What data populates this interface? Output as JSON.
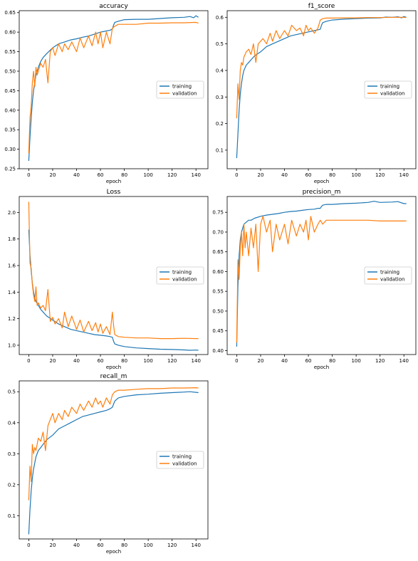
{
  "colors": {
    "training": "#1f77b4",
    "validation": "#ff7f0e",
    "axis": "#000000",
    "background": "#ffffff"
  },
  "chart_data": [
    {
      "type": "line",
      "title": "accuracy",
      "xlabel": "epoch",
      "ylabel": "",
      "xlim": [
        -8,
        150
      ],
      "ylim": [
        0.25,
        0.655
      ],
      "xticks": [
        0,
        20,
        40,
        60,
        80,
        100,
        120,
        140
      ],
      "yticks": [
        0.25,
        0.3,
        0.35,
        0.4,
        0.45,
        0.5,
        0.55,
        0.6,
        0.65
      ],
      "ytick_labels": [
        "0.25",
        "0.30",
        "0.35",
        "0.40",
        "0.45",
        "0.50",
        "0.55",
        "0.60",
        "0.65"
      ],
      "grid": false,
      "legend": "center-right",
      "series": [
        {
          "name": "training",
          "color": "#1f77b4",
          "x": [
            0,
            1,
            2,
            3,
            4,
            5,
            6,
            8,
            10,
            12,
            15,
            20,
            25,
            30,
            35,
            40,
            45,
            50,
            55,
            60,
            65,
            68,
            70,
            71,
            72,
            75,
            80,
            90,
            100,
            110,
            120,
            130,
            135,
            138,
            140,
            142
          ],
          "y": [
            0.27,
            0.33,
            0.38,
            0.42,
            0.45,
            0.47,
            0.49,
            0.51,
            0.525,
            0.535,
            0.545,
            0.56,
            0.57,
            0.575,
            0.58,
            0.583,
            0.587,
            0.59,
            0.595,
            0.6,
            0.603,
            0.605,
            0.608,
            0.618,
            0.625,
            0.628,
            0.632,
            0.633,
            0.633,
            0.635,
            0.637,
            0.638,
            0.64,
            0.637,
            0.642,
            0.638
          ]
        },
        {
          "name": "validation",
          "color": "#ff7f0e",
          "x": [
            0,
            1,
            2,
            3,
            4,
            5,
            6,
            7,
            8,
            10,
            12,
            14,
            16,
            18,
            20,
            22,
            25,
            28,
            30,
            33,
            36,
            40,
            43,
            46,
            50,
            53,
            56,
            58,
            60,
            62,
            65,
            68,
            70,
            72,
            75,
            80,
            90,
            100,
            110,
            120,
            130,
            140,
            142
          ],
          "y": [
            0.29,
            0.38,
            0.41,
            0.47,
            0.5,
            0.46,
            0.51,
            0.49,
            0.5,
            0.52,
            0.51,
            0.53,
            0.47,
            0.55,
            0.56,
            0.54,
            0.57,
            0.55,
            0.57,
            0.555,
            0.575,
            0.55,
            0.585,
            0.56,
            0.59,
            0.565,
            0.6,
            0.57,
            0.6,
            0.56,
            0.6,
            0.57,
            0.61,
            0.615,
            0.62,
            0.62,
            0.62,
            0.623,
            0.623,
            0.624,
            0.624,
            0.625,
            0.623
          ]
        }
      ]
    },
    {
      "type": "line",
      "title": "f1_score",
      "xlabel": "epoch",
      "ylabel": "",
      "xlim": [
        -8,
        150
      ],
      "ylim": [
        0.03,
        0.625
      ],
      "xticks": [
        0,
        20,
        40,
        60,
        80,
        100,
        120,
        140
      ],
      "yticks": [
        0.1,
        0.2,
        0.3,
        0.4,
        0.5,
        0.6
      ],
      "ytick_labels": [
        "0.1",
        "0.2",
        "0.3",
        "0.4",
        "0.5",
        "0.6"
      ],
      "grid": false,
      "legend": "center-right",
      "series": [
        {
          "name": "training",
          "color": "#1f77b4",
          "x": [
            0,
            1,
            2,
            3,
            4,
            5,
            6,
            8,
            10,
            12,
            15,
            20,
            25,
            30,
            35,
            40,
            45,
            50,
            55,
            60,
            65,
            68,
            70,
            71,
            72,
            75,
            80,
            90,
            100,
            110,
            120,
            125,
            130,
            135,
            138,
            140,
            142
          ],
          "y": [
            0.07,
            0.16,
            0.25,
            0.31,
            0.35,
            0.38,
            0.4,
            0.42,
            0.43,
            0.44,
            0.455,
            0.47,
            0.49,
            0.5,
            0.51,
            0.52,
            0.53,
            0.535,
            0.54,
            0.545,
            0.55,
            0.553,
            0.555,
            0.57,
            0.58,
            0.585,
            0.59,
            0.593,
            0.595,
            0.597,
            0.598,
            0.601,
            0.6,
            0.602,
            0.598,
            0.603,
            0.6
          ]
        },
        {
          "name": "validation",
          "color": "#ff7f0e",
          "x": [
            0,
            1,
            2,
            3,
            4,
            5,
            6,
            8,
            10,
            12,
            14,
            16,
            18,
            20,
            22,
            25,
            28,
            30,
            33,
            36,
            40,
            43,
            46,
            50,
            53,
            56,
            58,
            60,
            62,
            65,
            68,
            70,
            72,
            75,
            80,
            90,
            100,
            110,
            120,
            130,
            140,
            142
          ],
          "y": [
            0.22,
            0.35,
            0.29,
            0.4,
            0.43,
            0.42,
            0.45,
            0.47,
            0.48,
            0.46,
            0.5,
            0.43,
            0.5,
            0.51,
            0.52,
            0.5,
            0.54,
            0.51,
            0.55,
            0.52,
            0.55,
            0.53,
            0.57,
            0.55,
            0.56,
            0.53,
            0.57,
            0.55,
            0.56,
            0.54,
            0.56,
            0.59,
            0.595,
            0.597,
            0.597,
            0.598,
            0.598,
            0.599,
            0.599,
            0.6,
            0.6,
            0.599
          ]
        }
      ]
    },
    {
      "type": "line",
      "title": "Loss",
      "xlabel": "epoch",
      "ylabel": "",
      "xlim": [
        -8,
        150
      ],
      "ylim": [
        0.93,
        2.12
      ],
      "xticks": [
        0,
        20,
        40,
        60,
        80,
        100,
        120,
        140
      ],
      "yticks": [
        1.0,
        1.2,
        1.4,
        1.6,
        1.8,
        2.0
      ],
      "ytick_labels": [
        "1.0",
        "1.2",
        "1.4",
        "1.6",
        "1.8",
        "2.0"
      ],
      "grid": false,
      "legend": "center-right",
      "series": [
        {
          "name": "training",
          "color": "#1f77b4",
          "x": [
            0,
            1,
            2,
            3,
            4,
            5,
            6,
            8,
            10,
            12,
            15,
            20,
            25,
            30,
            35,
            40,
            45,
            50,
            55,
            60,
            65,
            68,
            70,
            71,
            72,
            75,
            80,
            90,
            100,
            110,
            120,
            130,
            135,
            140,
            142
          ],
          "y": [
            1.87,
            1.68,
            1.56,
            1.47,
            1.4,
            1.36,
            1.33,
            1.3,
            1.27,
            1.25,
            1.22,
            1.19,
            1.16,
            1.14,
            1.12,
            1.11,
            1.1,
            1.09,
            1.08,
            1.075,
            1.07,
            1.065,
            1.06,
            1.03,
            1.01,
            1.0,
            0.99,
            0.98,
            0.975,
            0.97,
            0.968,
            0.965,
            0.962,
            0.964,
            0.962
          ]
        },
        {
          "name": "validation",
          "color": "#ff7f0e",
          "x": [
            0,
            1,
            2,
            3,
            4,
            5,
            6,
            7,
            8,
            10,
            12,
            14,
            16,
            18,
            20,
            22,
            25,
            28,
            30,
            33,
            36,
            40,
            43,
            46,
            50,
            53,
            56,
            58,
            60,
            62,
            65,
            68,
            70,
            71,
            72,
            75,
            80,
            90,
            100,
            110,
            120,
            130,
            140,
            142
          ],
          "y": [
            2.08,
            1.62,
            1.58,
            1.46,
            1.38,
            1.33,
            1.44,
            1.3,
            1.32,
            1.28,
            1.3,
            1.26,
            1.42,
            1.18,
            1.21,
            1.16,
            1.2,
            1.13,
            1.25,
            1.14,
            1.22,
            1.12,
            1.19,
            1.1,
            1.18,
            1.11,
            1.17,
            1.1,
            1.16,
            1.09,
            1.14,
            1.08,
            1.25,
            1.15,
            1.08,
            1.065,
            1.06,
            1.055,
            1.055,
            1.05,
            1.05,
            1.052,
            1.05,
            1.05
          ]
        }
      ]
    },
    {
      "type": "line",
      "title": "precision_m",
      "xlabel": "epoch",
      "ylabel": "",
      "xlim": [
        -8,
        150
      ],
      "ylim": [
        0.39,
        0.79
      ],
      "xticks": [
        0,
        20,
        40,
        60,
        80,
        100,
        120,
        140
      ],
      "yticks": [
        0.4,
        0.45,
        0.5,
        0.55,
        0.6,
        0.65,
        0.7,
        0.75
      ],
      "ytick_labels": [
        "0.40",
        "0.45",
        "0.50",
        "0.55",
        "0.60",
        "0.65",
        "0.70",
        "0.75"
      ],
      "grid": false,
      "legend": "center-right",
      "series": [
        {
          "name": "training",
          "color": "#1f77b4",
          "x": [
            0,
            1,
            2,
            3,
            4,
            5,
            6,
            8,
            10,
            12,
            15,
            20,
            25,
            30,
            35,
            40,
            45,
            50,
            55,
            60,
            65,
            68,
            70,
            71,
            72,
            75,
            80,
            90,
            100,
            110,
            115,
            120,
            130,
            135,
            140,
            142
          ],
          "y": [
            0.41,
            0.56,
            0.64,
            0.68,
            0.7,
            0.71,
            0.72,
            0.725,
            0.73,
            0.73,
            0.735,
            0.74,
            0.743,
            0.745,
            0.747,
            0.75,
            0.752,
            0.753,
            0.755,
            0.757,
            0.758,
            0.76,
            0.76,
            0.765,
            0.768,
            0.77,
            0.77,
            0.772,
            0.773,
            0.775,
            0.778,
            0.775,
            0.776,
            0.777,
            0.772,
            0.772
          ]
        },
        {
          "name": "validation",
          "color": "#ff7f0e",
          "x": [
            0,
            1,
            2,
            3,
            4,
            5,
            6,
            7,
            8,
            10,
            12,
            14,
            16,
            18,
            20,
            22,
            25,
            28,
            30,
            33,
            36,
            40,
            43,
            46,
            50,
            53,
            56,
            58,
            60,
            62,
            65,
            68,
            70,
            72,
            75,
            80,
            90,
            100,
            110,
            120,
            130,
            140,
            142
          ],
          "y": [
            0.42,
            0.63,
            0.58,
            0.66,
            0.7,
            0.64,
            0.72,
            0.66,
            0.7,
            0.64,
            0.71,
            0.66,
            0.72,
            0.6,
            0.72,
            0.74,
            0.7,
            0.73,
            0.65,
            0.72,
            0.68,
            0.72,
            0.67,
            0.73,
            0.69,
            0.72,
            0.7,
            0.73,
            0.68,
            0.74,
            0.7,
            0.72,
            0.73,
            0.72,
            0.73,
            0.73,
            0.73,
            0.73,
            0.73,
            0.728,
            0.728,
            0.728,
            0.728
          ]
        }
      ]
    },
    {
      "type": "line",
      "title": "recall_m",
      "xlabel": "epoch",
      "ylabel": "",
      "xlim": [
        -8,
        150
      ],
      "ylim": [
        0.025,
        0.535
      ],
      "xticks": [
        0,
        20,
        40,
        60,
        80,
        100,
        120,
        140
      ],
      "yticks": [
        0.1,
        0.2,
        0.3,
        0.4,
        0.5
      ],
      "ytick_labels": [
        "0.1",
        "0.2",
        "0.3",
        "0.4",
        "0.5"
      ],
      "grid": false,
      "legend": "center-right",
      "series": [
        {
          "name": "training",
          "color": "#1f77b4",
          "x": [
            0,
            1,
            2,
            3,
            4,
            5,
            6,
            8,
            10,
            12,
            15,
            20,
            25,
            30,
            35,
            40,
            45,
            50,
            55,
            60,
            65,
            68,
            70,
            71,
            72,
            75,
            80,
            90,
            100,
            110,
            120,
            130,
            135,
            140,
            142
          ],
          "y": [
            0.04,
            0.12,
            0.18,
            0.22,
            0.25,
            0.27,
            0.29,
            0.31,
            0.32,
            0.33,
            0.345,
            0.36,
            0.38,
            0.39,
            0.4,
            0.41,
            0.42,
            0.425,
            0.43,
            0.435,
            0.44,
            0.445,
            0.45,
            0.46,
            0.47,
            0.48,
            0.485,
            0.49,
            0.492,
            0.495,
            0.497,
            0.499,
            0.5,
            0.498,
            0.497
          ]
        },
        {
          "name": "validation",
          "color": "#ff7f0e",
          "x": [
            0,
            1,
            2,
            3,
            4,
            5,
            6,
            8,
            10,
            12,
            14,
            16,
            18,
            20,
            22,
            25,
            28,
            30,
            33,
            36,
            40,
            43,
            46,
            50,
            53,
            56,
            58,
            60,
            62,
            65,
            68,
            70,
            72,
            75,
            80,
            90,
            100,
            110,
            120,
            130,
            140,
            142
          ],
          "y": [
            0.15,
            0.26,
            0.21,
            0.33,
            0.3,
            0.32,
            0.31,
            0.35,
            0.34,
            0.37,
            0.31,
            0.39,
            0.41,
            0.43,
            0.4,
            0.43,
            0.41,
            0.44,
            0.42,
            0.45,
            0.43,
            0.46,
            0.44,
            0.47,
            0.45,
            0.48,
            0.46,
            0.47,
            0.45,
            0.48,
            0.46,
            0.49,
            0.5,
            0.505,
            0.505,
            0.508,
            0.51,
            0.51,
            0.512,
            0.512,
            0.513,
            0.512
          ]
        }
      ]
    }
  ]
}
